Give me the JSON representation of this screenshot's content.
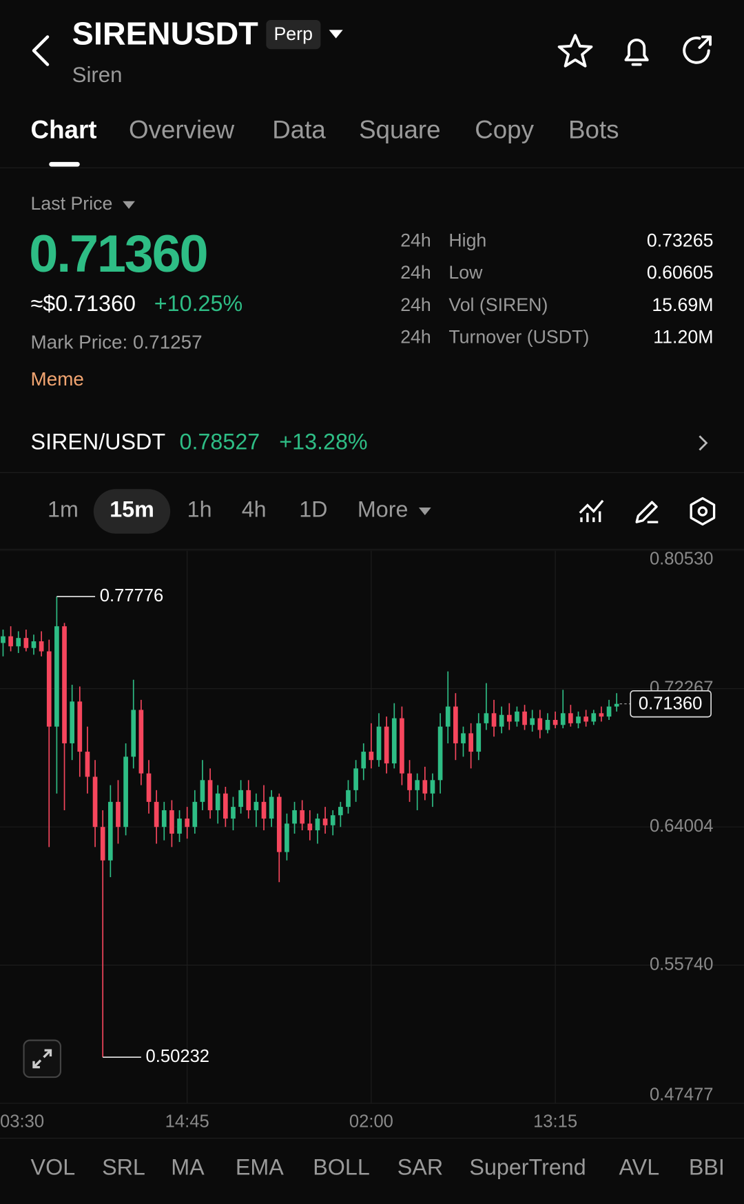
{
  "header": {
    "title": "SIRENUSDT",
    "badge": "Perp",
    "subtitle": "Siren"
  },
  "tabs": {
    "items": [
      "Chart",
      "Overview",
      "Data",
      "Square",
      "Copy",
      "Bots"
    ],
    "active": 0
  },
  "price": {
    "label": "Last Price",
    "last": "0.71360",
    "usd": "≈$0.71360",
    "change": "+10.25%",
    "mark": "Mark Price: 0.71257",
    "tag": "Meme"
  },
  "stats": {
    "rows": [
      [
        "24h",
        "High",
        "0.73265"
      ],
      [
        "24h",
        "Low",
        "0.60605"
      ],
      [
        "24h",
        "Vol (SIREN)",
        "15.69M"
      ],
      [
        "24h",
        "Turnover (USDT)",
        "11.20M"
      ]
    ]
  },
  "spot": {
    "pair": "SIREN/USDT",
    "price": "0.78527",
    "change": "+13.28%"
  },
  "intervals": {
    "items": [
      "1m",
      "15m",
      "1h",
      "4h",
      "1D",
      "More"
    ],
    "active": 1
  },
  "chart_data": {
    "type": "candlestick",
    "times": [
      "03:30",
      null,
      null,
      null,
      null,
      null,
      null,
      null,
      null,
      null,
      null,
      null,
      null,
      null,
      null,
      null,
      null,
      null,
      null,
      null,
      null,
      null,
      null,
      null,
      "14:45",
      null,
      null,
      null,
      null,
      null,
      null,
      null,
      null,
      null,
      null,
      null,
      null,
      null,
      null,
      null,
      null,
      null,
      null,
      null,
      null,
      null,
      null,
      null,
      "02:00",
      null,
      null,
      null,
      null,
      null,
      null,
      null,
      null,
      null,
      null,
      null,
      null,
      null,
      null,
      null,
      null,
      null,
      null,
      null,
      null,
      null,
      null,
      null,
      "13:15",
      null,
      null,
      null,
      null,
      null,
      null,
      null,
      null
    ],
    "open": [
      0.75,
      0.754,
      0.748,
      0.753,
      0.747,
      0.751,
      0.745,
      0.7,
      0.76,
      0.69,
      0.715,
      0.685,
      0.67,
      0.64,
      0.62,
      0.655,
      0.64,
      0.682,
      0.71,
      0.672,
      0.655,
      0.64,
      0.65,
      0.636,
      0.645,
      0.64,
      0.655,
      0.668,
      0.65,
      0.66,
      0.645,
      0.652,
      0.662,
      0.65,
      0.655,
      0.645,
      0.658,
      0.625,
      0.642,
      0.65,
      0.642,
      0.638,
      0.645,
      0.641,
      0.647,
      0.652,
      0.662,
      0.675,
      0.685,
      0.68,
      0.7,
      0.678,
      0.705,
      0.672,
      0.662,
      0.668,
      0.66,
      0.668,
      0.7,
      0.712,
      0.69,
      0.696,
      0.685,
      0.702,
      0.708,
      0.7,
      0.707,
      0.703,
      0.709,
      0.701,
      0.705,
      0.698,
      0.704,
      0.701,
      0.708,
      0.702,
      0.706,
      0.703,
      0.708,
      0.706,
      0.712
    ],
    "high": [
      0.758,
      0.76,
      0.757,
      0.758,
      0.755,
      0.757,
      0.752,
      0.77776,
      0.762,
      0.725,
      0.724,
      0.7,
      0.68,
      0.65,
      0.665,
      0.668,
      0.69,
      0.728,
      0.716,
      0.68,
      0.662,
      0.655,
      0.656,
      0.65,
      0.652,
      0.662,
      0.68,
      0.675,
      0.665,
      0.664,
      0.658,
      0.668,
      0.668,
      0.66,
      0.665,
      0.662,
      0.66,
      0.648,
      0.655,
      0.656,
      0.65,
      0.648,
      0.652,
      0.65,
      0.655,
      0.668,
      0.68,
      0.69,
      0.702,
      0.708,
      0.706,
      0.714,
      0.712,
      0.68,
      0.672,
      0.676,
      0.672,
      0.708,
      0.733,
      0.72,
      0.7,
      0.702,
      0.708,
      0.726,
      0.716,
      0.712,
      0.714,
      0.712,
      0.713,
      0.71,
      0.71,
      0.708,
      0.709,
      0.722,
      0.713,
      0.709,
      0.71,
      0.71,
      0.712,
      0.716,
      0.72
    ],
    "low": [
      0.742,
      0.745,
      0.744,
      0.745,
      0.743,
      0.742,
      0.628,
      0.66,
      0.65,
      0.68,
      0.67,
      0.66,
      0.628,
      0.50232,
      0.61,
      0.63,
      0.635,
      0.675,
      0.665,
      0.648,
      0.63,
      0.632,
      0.628,
      0.631,
      0.633,
      0.636,
      0.65,
      0.645,
      0.642,
      0.64,
      0.638,
      0.648,
      0.645,
      0.64,
      0.638,
      0.64,
      0.607,
      0.62,
      0.636,
      0.638,
      0.632,
      0.63,
      0.636,
      0.635,
      0.64,
      0.648,
      0.655,
      0.668,
      0.675,
      0.676,
      0.672,
      0.675,
      0.665,
      0.655,
      0.65,
      0.656,
      0.652,
      0.66,
      0.69,
      0.68,
      0.682,
      0.675,
      0.68,
      0.698,
      0.694,
      0.696,
      0.698,
      0.7,
      0.698,
      0.697,
      0.693,
      0.696,
      0.699,
      0.699,
      0.7,
      0.699,
      0.7,
      0.701,
      0.703,
      0.704,
      0.709
    ],
    "close": [
      0.754,
      0.748,
      0.753,
      0.747,
      0.751,
      0.745,
      0.7,
      0.76,
      0.69,
      0.715,
      0.685,
      0.67,
      0.64,
      0.62,
      0.655,
      0.64,
      0.682,
      0.71,
      0.672,
      0.655,
      0.64,
      0.65,
      0.636,
      0.645,
      0.64,
      0.655,
      0.668,
      0.65,
      0.66,
      0.645,
      0.652,
      0.662,
      0.65,
      0.655,
      0.645,
      0.658,
      0.625,
      0.642,
      0.65,
      0.642,
      0.638,
      0.645,
      0.641,
      0.647,
      0.652,
      0.662,
      0.675,
      0.685,
      0.68,
      0.7,
      0.678,
      0.705,
      0.672,
      0.662,
      0.668,
      0.66,
      0.668,
      0.7,
      0.712,
      0.69,
      0.696,
      0.685,
      0.702,
      0.708,
      0.7,
      0.707,
      0.703,
      0.709,
      0.701,
      0.705,
      0.698,
      0.704,
      0.701,
      0.708,
      0.702,
      0.706,
      0.703,
      0.708,
      0.706,
      0.712,
      0.7136
    ],
    "up_color": "#2ebd85",
    "down_color": "#f6465d",
    "ylim": [
      0.47477,
      0.8053
    ],
    "yticks": [
      {
        "value": 0.47477,
        "label": "0.47477"
      },
      {
        "value": 0.5574,
        "label": "0.55740"
      },
      {
        "value": 0.64004,
        "label": "0.64004"
      },
      {
        "value": 0.72267,
        "label": "0.72267"
      },
      {
        "value": 0.8053,
        "label": "0.80530"
      }
    ],
    "high_marker": {
      "value": 0.77776,
      "label": "0.77776"
    },
    "low_marker": {
      "value": 0.50232,
      "label": "0.50232"
    },
    "last_marker": {
      "value": 0.7136,
      "label": "0.71360"
    },
    "grid": true
  },
  "indicators": [
    "VOL",
    "SRL",
    "MA",
    "EMA",
    "BOLL",
    "SAR",
    "SuperTrend",
    "AVL",
    "BBI"
  ]
}
